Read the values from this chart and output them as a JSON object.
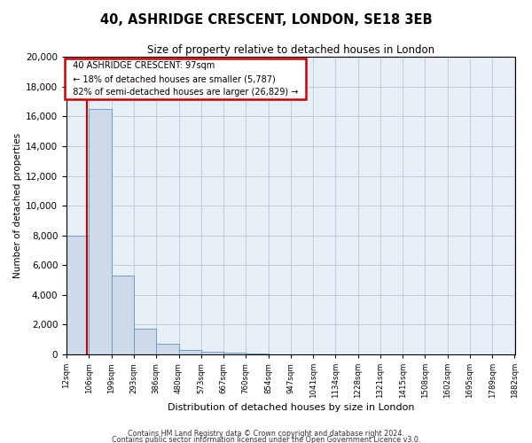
{
  "title": "40, ASHRIDGE CRESCENT, LONDON, SE18 3EB",
  "subtitle": "Size of property relative to detached houses in London",
  "xlabel": "Distribution of detached houses by size in London",
  "ylabel": "Number of detached properties",
  "property_size": 97,
  "property_label": "40 ASHRIDGE CRESCENT: 97sqm",
  "annotation_line1": "← 18% of detached houses are smaller (5,787)",
  "annotation_line2": "82% of semi-detached houses are larger (26,829) →",
  "bar_edges": [
    12,
    106,
    199,
    293,
    386,
    480,
    573,
    667,
    760,
    854,
    947,
    1041,
    1134,
    1228,
    1321,
    1415,
    1508,
    1602,
    1695,
    1789,
    1882
  ],
  "bar_heights": [
    8000,
    16500,
    5300,
    1700,
    700,
    300,
    200,
    150,
    50,
    20,
    10,
    5,
    3,
    2,
    1,
    1,
    0,
    0,
    0,
    0
  ],
  "bar_color": "#ccdaea",
  "bar_edge_color": "#6a9ec4",
  "property_line_color": "#cc0000",
  "annotation_box_color": "#cc0000",
  "background_color": "#ffffff",
  "plot_bg_color": "#e8eef5",
  "grid_color": "#b8c8d8",
  "ylim": [
    0,
    20000
  ],
  "yticks": [
    0,
    2000,
    4000,
    6000,
    8000,
    10000,
    12000,
    14000,
    16000,
    18000,
    20000
  ],
  "footer1": "Contains HM Land Registry data © Crown copyright and database right 2024.",
  "footer2": "Contains public sector information licensed under the Open Government Licence v3.0."
}
